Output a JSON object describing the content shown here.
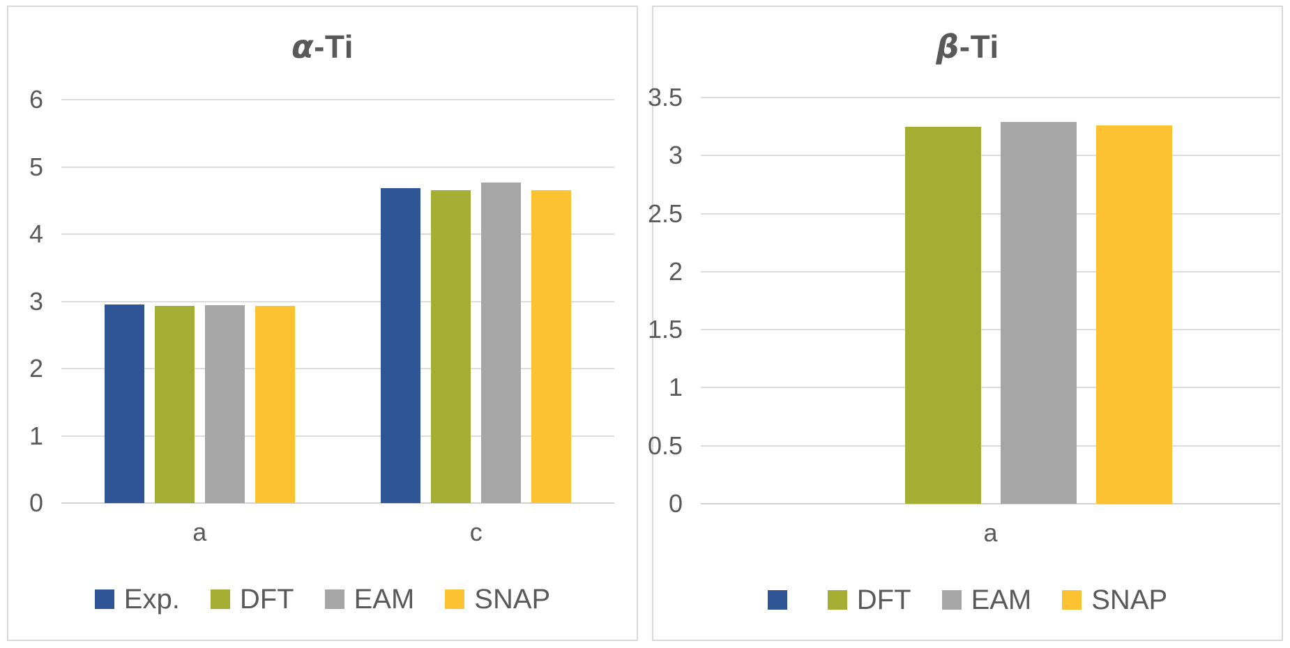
{
  "chart_data": [
    {
      "type": "bar",
      "title": {
        "greek": "α",
        "rest": "-Ti"
      },
      "title_full": "α-Ti",
      "categories": [
        "a",
        "c"
      ],
      "series": [
        {
          "name": "Exp.",
          "color": "#2F5597",
          "values": [
            2.95,
            4.68
          ]
        },
        {
          "name": "DFT",
          "color": "#A3AE32",
          "values": [
            2.93,
            4.65
          ]
        },
        {
          "name": "EAM",
          "color": "#A6A6A6",
          "values": [
            2.94,
            4.77
          ]
        },
        {
          "name": "SNAP",
          "color": "#FCC231",
          "values": [
            2.93,
            4.65
          ]
        }
      ],
      "ylim": [
        0,
        6
      ],
      "ytick_step": 1,
      "yticks": [
        "0",
        "1",
        "2",
        "3",
        "4",
        "5",
        "6"
      ],
      "grid": true,
      "legend_position": "bottom",
      "xlabel": "",
      "ylabel": ""
    },
    {
      "type": "bar",
      "title": {
        "greek": "β",
        "rest": "-Ti"
      },
      "title_full": "β-Ti",
      "categories": [
        "a"
      ],
      "series": [
        {
          "name": "",
          "color": "#2F5597",
          "values": [
            null
          ]
        },
        {
          "name": "DFT",
          "color": "#A3AE32",
          "values": [
            3.25
          ]
        },
        {
          "name": "EAM",
          "color": "#A6A6A6",
          "values": [
            3.29
          ]
        },
        {
          "name": "SNAP",
          "color": "#FCC231",
          "values": [
            3.26
          ]
        }
      ],
      "ylim": [
        0,
        3.5
      ],
      "ytick_step": 0.5,
      "yticks": [
        "0",
        "0.5",
        "1",
        "1.5",
        "2",
        "2.5",
        "3",
        "3.5"
      ],
      "grid": true,
      "legend_position": "bottom",
      "xlabel": "",
      "ylabel": ""
    }
  ],
  "colors": {
    "text": "#595959",
    "gridline": "#DCDCDC",
    "panel_border": "#D9D9D9",
    "series_blue": "#2F5597",
    "series_green": "#A3AE32",
    "series_gray": "#A6A6A6",
    "series_yellow": "#FCC231"
  }
}
